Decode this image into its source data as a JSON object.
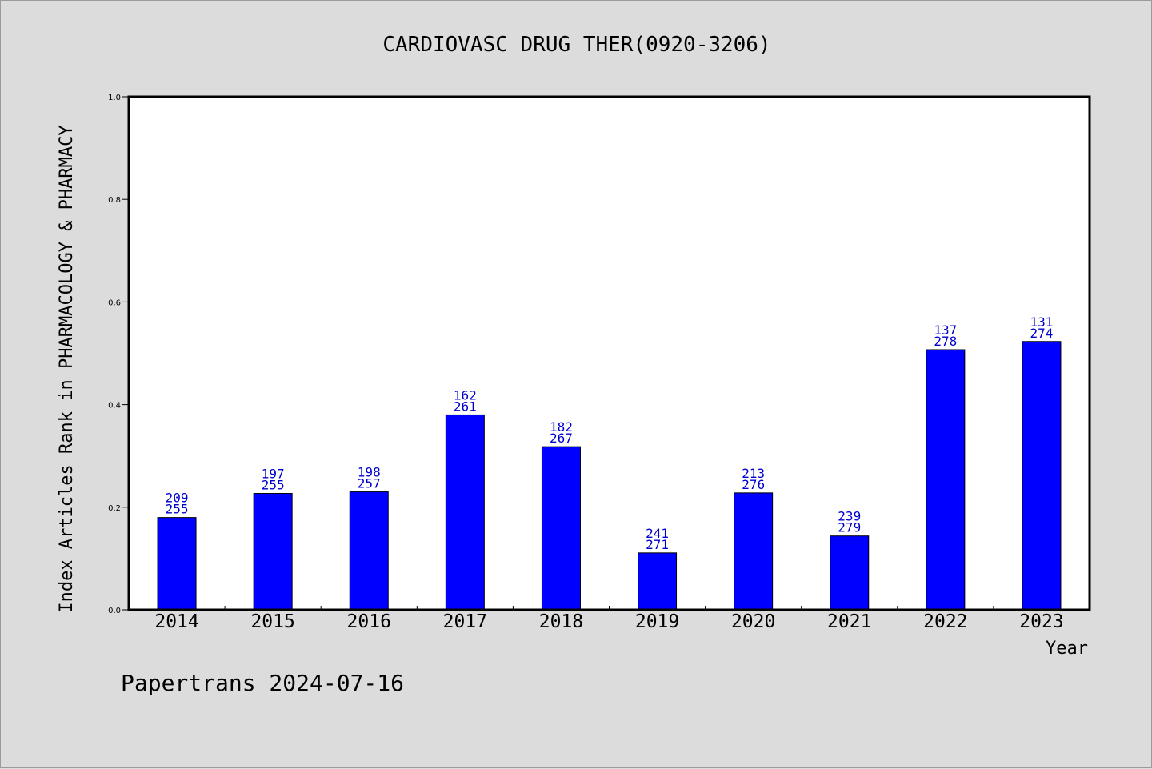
{
  "chart_data": {
    "type": "bar",
    "title": "CARDIOVASC DRUG THER(0920-3206)",
    "xlabel": "Year",
    "ylabel": "Index Articles Rank in PHARMACOLOGY & PHARMACY",
    "ylim": [
      0,
      1.0
    ],
    "yticks": [
      "0.0",
      "0.2",
      "0.4",
      "0.6",
      "0.8",
      "1.0"
    ],
    "grid": false,
    "bar_color": "#0000ff",
    "label_color": "#0000cc",
    "categories": [
      "2014",
      "2015",
      "2016",
      "2017",
      "2018",
      "2019",
      "2020",
      "2021",
      "2022",
      "2023"
    ],
    "values": [
      0.18,
      0.227,
      0.23,
      0.38,
      0.318,
      0.111,
      0.228,
      0.144,
      0.507,
      0.523
    ],
    "labels_top": [
      "209",
      "197",
      "198",
      "162",
      "182",
      "241",
      "213",
      "239",
      "137",
      "131"
    ],
    "labels_bottom": [
      "255",
      "255",
      "257",
      "261",
      "267",
      "271",
      "276",
      "279",
      "278",
      "274"
    ]
  },
  "footer": "Papertrans 2024-07-16"
}
